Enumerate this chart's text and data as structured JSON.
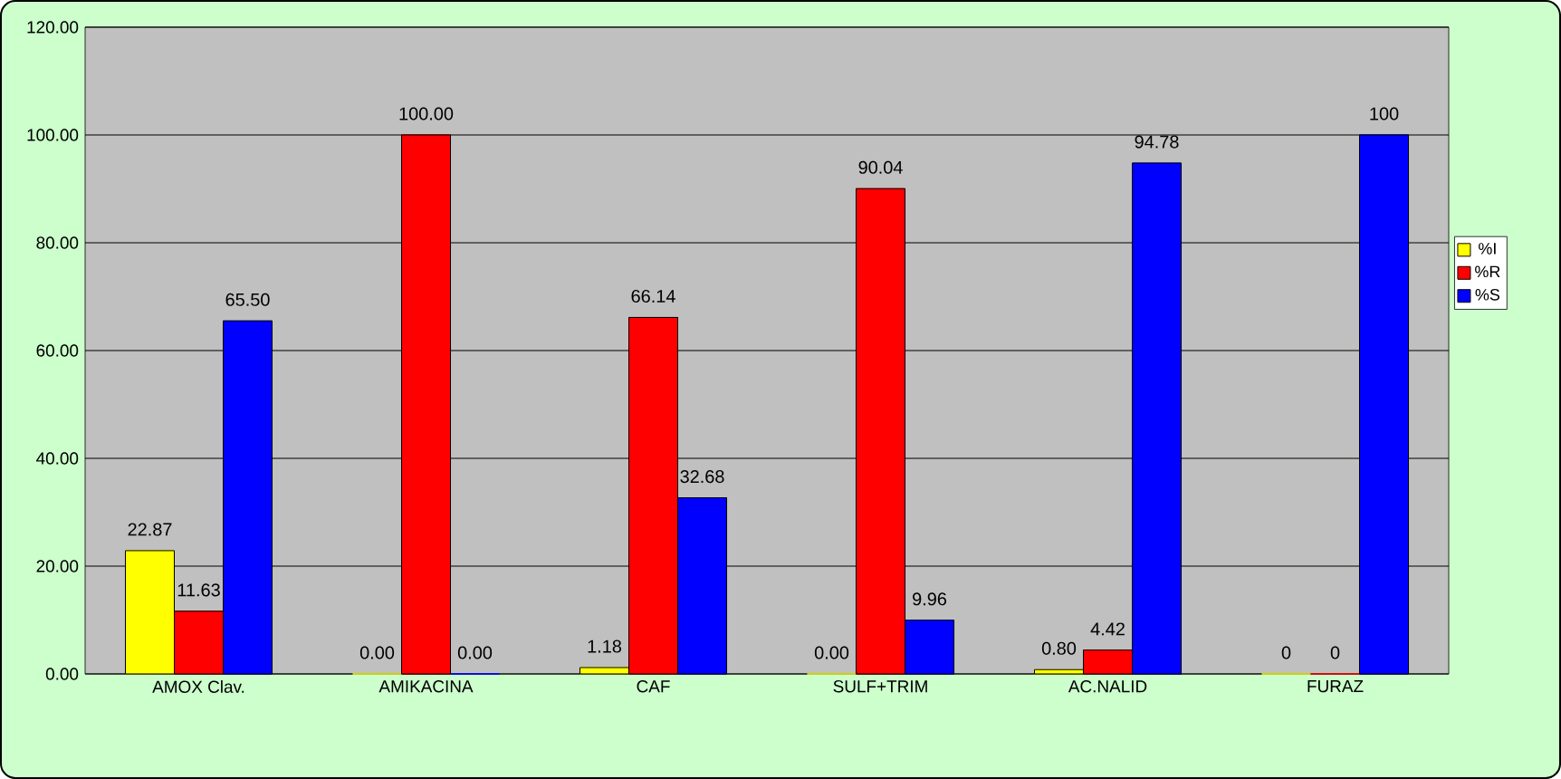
{
  "chart_data": {
    "type": "bar",
    "categories": [
      "AMOX Clav.",
      "AMIKACINA",
      "CAF",
      "SULF+TRIM",
      "AC.NALID",
      "FURAZ"
    ],
    "series": [
      {
        "name": "%I",
        "color": "#ffff00",
        "values": [
          22.87,
          0,
          1.18,
          0,
          0.8,
          0
        ],
        "value_labels": [
          "22.87",
          "0.00",
          "1.18",
          "0.00",
          "0.80",
          "0"
        ]
      },
      {
        "name": "%R",
        "color": "#ff0000",
        "values": [
          11.63,
          100,
          66.14,
          90.04,
          4.42,
          0
        ],
        "value_labels": [
          "11.63",
          "100.00",
          "66.14",
          "90.04",
          "4.42",
          "0"
        ]
      },
      {
        "name": "%S",
        "color": "#0000ff",
        "values": [
          65.5,
          0,
          32.68,
          9.96,
          94.78,
          100
        ],
        "value_labels": [
          "65.50",
          "0.00",
          "32.68",
          "9.96",
          "94.78",
          "100"
        ]
      }
    ],
    "ylim": [
      0,
      120
    ],
    "yticks": [
      {
        "value": 0,
        "label": "0.00"
      },
      {
        "value": 20,
        "label": "20.00"
      },
      {
        "value": 40,
        "label": "40.00"
      },
      {
        "value": 60,
        "label": "60.00"
      },
      {
        "value": 80,
        "label": "80.00"
      },
      {
        "value": 100,
        "label": "100.00"
      },
      {
        "value": 120,
        "label": "120.00"
      }
    ],
    "grid": "y",
    "legend": "right"
  }
}
